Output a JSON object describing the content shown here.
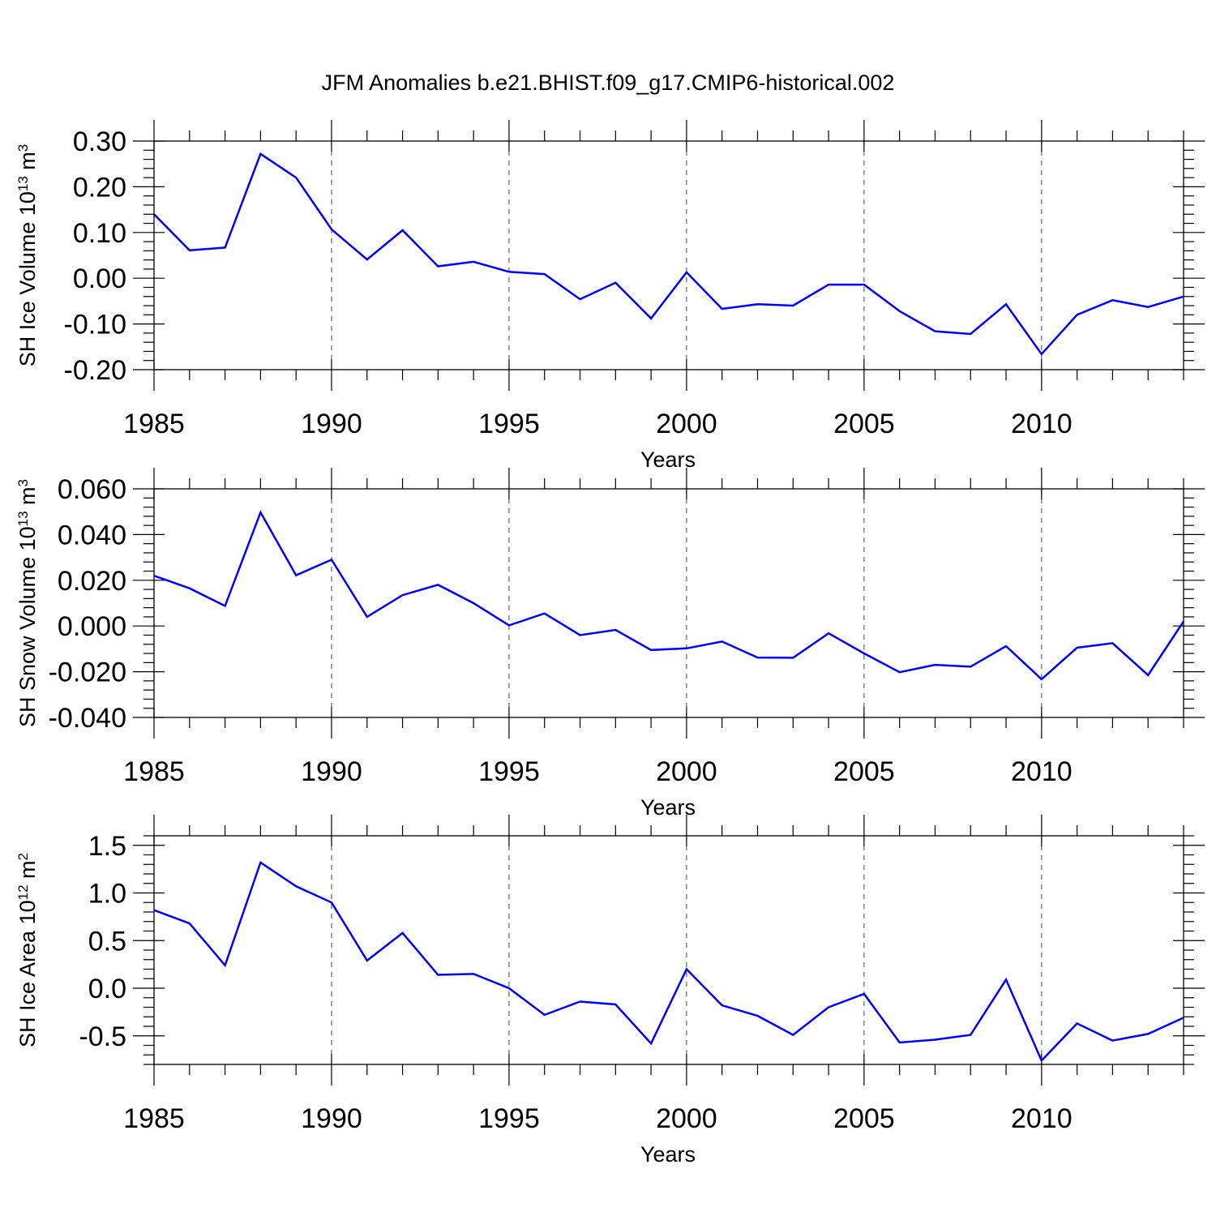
{
  "chart_data": {
    "type": "line",
    "title": "JFM Anomalies b.e21.BHIST.f09_g17.CMIP6-historical.002",
    "line_color": "#0000ff",
    "x": [
      1985,
      1986,
      1987,
      1988,
      1989,
      1990,
      1991,
      1992,
      1993,
      1994,
      1995,
      1996,
      1997,
      1998,
      1999,
      2000,
      2001,
      2002,
      2003,
      2004,
      2005,
      2006,
      2007,
      2008,
      2009,
      2010,
      2011,
      2012,
      2013,
      2014
    ],
    "xlim": [
      1985,
      2014
    ],
    "xticks": [
      1985,
      1990,
      1995,
      2000,
      2005,
      2010
    ],
    "xticklabels": [
      "1985",
      "1990",
      "1995",
      "2000",
      "2005",
      "2010"
    ],
    "vertical_grid": "dashed at major x ticks",
    "panels": [
      {
        "xlabel": "Years",
        "ylabel": {
          "text": "SH Ice Volume 10",
          "exp": "13",
          "unit": " m",
          "unit_exp": "3"
        },
        "ylim": [
          -0.2,
          0.3
        ],
        "yticks": [
          0.3,
          0.2,
          0.1,
          0.0,
          -0.1,
          -0.2
        ],
        "yticklabels": [
          "0.30",
          "0.20",
          "0.10",
          "0.00",
          "-0.10",
          "-0.20"
        ],
        "series": [
          {
            "values": [
              0.14,
              0.061,
              0.067,
              0.272,
              0.22,
              0.107,
              0.041,
              0.105,
              0.026,
              0.036,
              0.014,
              0.009,
              -0.046,
              -0.01,
              -0.088,
              0.013,
              -0.067,
              -0.057,
              -0.06,
              -0.014,
              -0.014,
              -0.072,
              -0.116,
              -0.122,
              -0.057,
              -0.166,
              -0.08,
              -0.048,
              -0.063,
              -0.04
            ]
          }
        ]
      },
      {
        "xlabel": "Years",
        "ylabel": {
          "text": "SH Snow Volume 10",
          "exp": "13",
          "unit": " m",
          "unit_exp": "3"
        },
        "ylim": [
          -0.04,
          0.06
        ],
        "yticks": [
          0.06,
          0.04,
          0.02,
          0.0,
          -0.02,
          -0.04
        ],
        "yticklabels": [
          "0.060",
          "0.040",
          "0.020",
          "0.000",
          "-0.020",
          "-0.040"
        ],
        "series": [
          {
            "values": [
              0.022,
              0.0165,
              0.0088,
              0.0497,
              0.0222,
              0.029,
              0.004,
              0.0135,
              0.018,
              0.01,
              0.0003,
              0.0055,
              -0.004,
              -0.0017,
              -0.0105,
              -0.0098,
              -0.0068,
              -0.0138,
              -0.0139,
              -0.0032,
              -0.012,
              -0.0202,
              -0.017,
              -0.0178,
              -0.0088,
              -0.0233,
              -0.0095,
              -0.0075,
              -0.0215,
              0.002
            ]
          }
        ]
      },
      {
        "xlabel": "Years",
        "ylabel": {
          "text": "SH Ice Area 10",
          "exp": "12",
          "unit": " m",
          "unit_exp": "2"
        },
        "ylim": [
          -0.8,
          1.6
        ],
        "yticks": [
          1.5,
          1.0,
          0.5,
          0.0,
          -0.5
        ],
        "yticklabels": [
          "1.5",
          "1.0",
          "0.5",
          "0.0",
          "-0.5"
        ],
        "series": [
          {
            "values": [
              0.82,
              0.68,
              0.24,
              1.32,
              1.07,
              0.9,
              0.29,
              0.58,
              0.14,
              0.15,
              0.0,
              -0.28,
              -0.14,
              -0.17,
              -0.58,
              0.2,
              -0.18,
              -0.29,
              -0.49,
              -0.2,
              -0.06,
              -0.57,
              -0.54,
              -0.49,
              0.09,
              -0.76,
              -0.37,
              -0.55,
              -0.48,
              -0.31
            ]
          }
        ]
      }
    ]
  }
}
